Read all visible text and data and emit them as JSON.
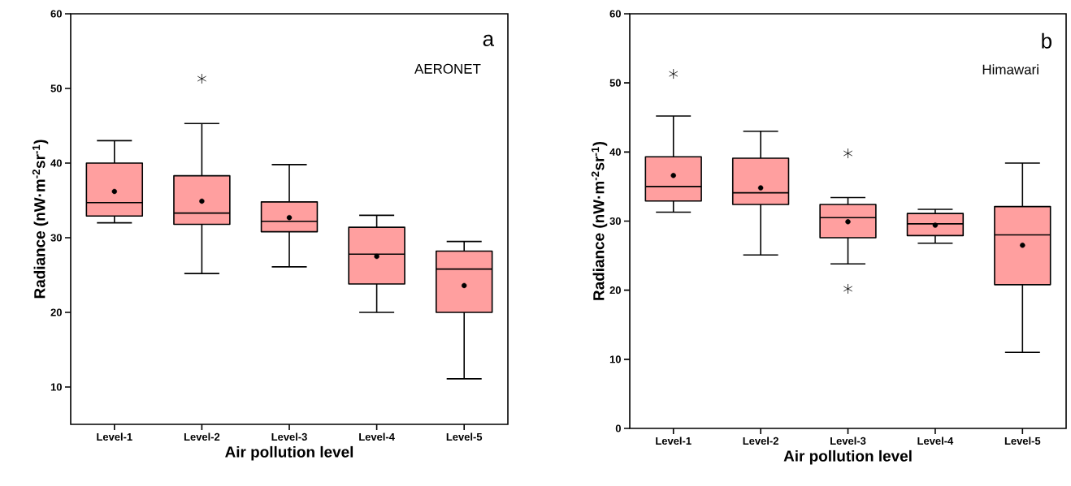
{
  "chart_data": [
    {
      "type": "box",
      "xlabel": "Air pollution level",
      "ylabel": "Radiance (nW·m$^{-2}$sr$^{-1}$)",
      "annotations": [
        "a",
        "AERONET"
      ],
      "color": "#ff9f9f",
      "categories": [
        "Level-1",
        "Level-2",
        "Level-3",
        "Level-4",
        "Level-5"
      ],
      "ylim": [
        5,
        60
      ],
      "yticks": [
        10,
        20,
        30,
        40,
        50,
        60
      ],
      "boxes": [
        {
          "low": 32.0,
          "q1": 32.9,
          "median": 34.7,
          "q3": 40.0,
          "high": 43.0,
          "mean": 36.2
        },
        {
          "low": 25.2,
          "q1": 31.8,
          "median": 33.3,
          "q3": 38.3,
          "high": 45.3,
          "mean": 34.9,
          "outliers": [
            51.3
          ]
        },
        {
          "low": 26.1,
          "q1": 30.8,
          "median": 32.2,
          "q3": 34.8,
          "high": 39.8,
          "mean": 32.7
        },
        {
          "low": 20.0,
          "q1": 23.8,
          "median": 27.8,
          "q3": 31.4,
          "high": 33.0,
          "mean": 27.5
        },
        {
          "low": 11.1,
          "q1": 20.0,
          "median": 25.8,
          "q3": 28.2,
          "high": 29.5,
          "mean": 23.6
        }
      ]
    },
    {
      "type": "box",
      "xlabel": "Air pollution level",
      "ylabel": "Radiance (nW·m$^{-2}$sr$^{-1}$)",
      "annotations": [
        "b",
        "Himawari"
      ],
      "color": "#ff9f9f",
      "categories": [
        "Level-1",
        "Level-2",
        "Level-3",
        "Level-4",
        "Level-5"
      ],
      "ylim": [
        0,
        60
      ],
      "yticks": [
        0,
        10,
        20,
        30,
        40,
        50,
        60
      ],
      "boxes": [
        {
          "low": 31.3,
          "q1": 32.9,
          "median": 35.0,
          "q3": 39.3,
          "high": 45.2,
          "mean": 36.6,
          "outliers": [
            51.3
          ]
        },
        {
          "low": 25.1,
          "q1": 32.4,
          "median": 34.1,
          "q3": 39.1,
          "high": 43.0,
          "mean": 34.8
        },
        {
          "low": 23.8,
          "q1": 27.6,
          "median": 30.5,
          "q3": 32.4,
          "high": 33.4,
          "mean": 29.9,
          "outliers": [
            39.8,
            20.2
          ]
        },
        {
          "low": 26.8,
          "q1": 27.9,
          "median": 29.6,
          "q3": 31.1,
          "high": 31.7,
          "mean": 29.4
        },
        {
          "low": 11.0,
          "q1": 20.8,
          "median": 28.0,
          "q3": 32.1,
          "high": 38.4,
          "mean": 26.5
        }
      ]
    }
  ]
}
